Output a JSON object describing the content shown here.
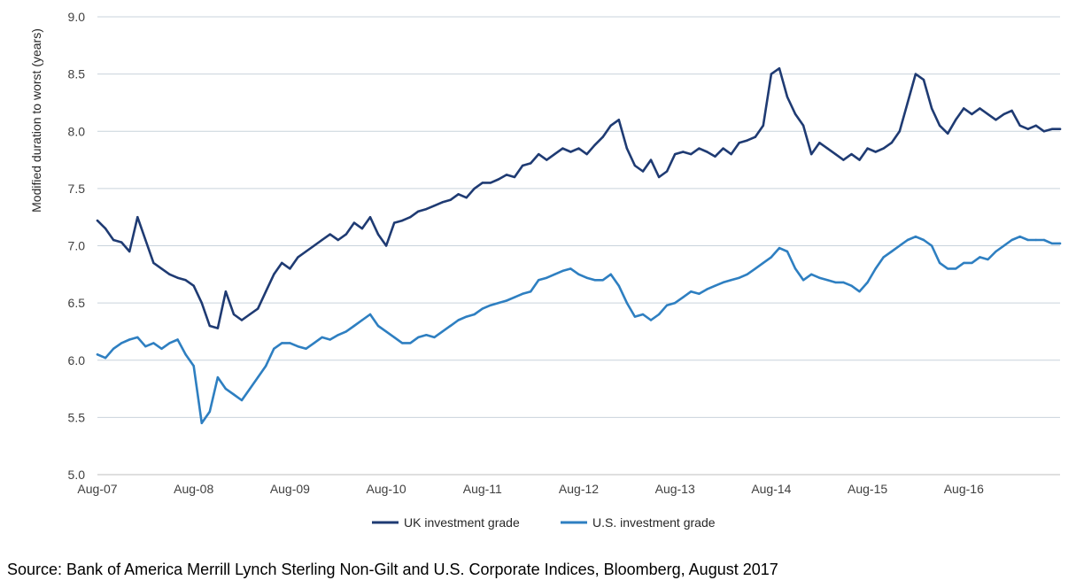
{
  "chart_data": {
    "type": "line",
    "title": "",
    "xlabel": "",
    "ylabel": "Modified duration to worst (years)",
    "ylim": [
      5.0,
      9.0
    ],
    "yticks": [
      "5.0",
      "5.5",
      "6.0",
      "6.5",
      "7.0",
      "7.5",
      "8.0",
      "8.5",
      "9.0"
    ],
    "xlim": [
      "2007-08",
      "2017-08"
    ],
    "xticks": [
      "Aug-07",
      "Aug-08",
      "Aug-09",
      "Aug-10",
      "Aug-11",
      "Aug-12",
      "Aug-13",
      "Aug-14",
      "Aug-15",
      "Aug-16"
    ],
    "grid": "horizontal",
    "legend_position": "bottom",
    "series": [
      {
        "name": "UK investment grade",
        "color": "#1f3b73",
        "x": [
          "2007-08",
          "2007-09",
          "2007-10",
          "2007-11",
          "2007-12",
          "2008-01",
          "2008-02",
          "2008-03",
          "2008-04",
          "2008-05",
          "2008-06",
          "2008-07",
          "2008-08",
          "2008-09",
          "2008-10",
          "2008-11",
          "2008-12",
          "2009-01",
          "2009-02",
          "2009-03",
          "2009-04",
          "2009-05",
          "2009-06",
          "2009-07",
          "2009-08",
          "2009-09",
          "2009-10",
          "2009-11",
          "2009-12",
          "2010-01",
          "2010-02",
          "2010-03",
          "2010-04",
          "2010-05",
          "2010-06",
          "2010-07",
          "2010-08",
          "2010-09",
          "2010-10",
          "2010-11",
          "2010-12",
          "2011-01",
          "2011-02",
          "2011-03",
          "2011-04",
          "2011-05",
          "2011-06",
          "2011-07",
          "2011-08",
          "2011-09",
          "2011-10",
          "2011-11",
          "2011-12",
          "2012-01",
          "2012-02",
          "2012-03",
          "2012-04",
          "2012-05",
          "2012-06",
          "2012-07",
          "2012-08",
          "2012-09",
          "2012-10",
          "2012-11",
          "2012-12",
          "2013-01",
          "2013-02",
          "2013-03",
          "2013-04",
          "2013-05",
          "2013-06",
          "2013-07",
          "2013-08",
          "2013-09",
          "2013-10",
          "2013-11",
          "2013-12",
          "2014-01",
          "2014-02",
          "2014-03",
          "2014-04",
          "2014-05",
          "2014-06",
          "2014-07",
          "2014-08",
          "2014-09",
          "2014-10",
          "2014-11",
          "2014-12",
          "2015-01",
          "2015-02",
          "2015-03",
          "2015-04",
          "2015-05",
          "2015-06",
          "2015-07",
          "2015-08",
          "2015-09",
          "2015-10",
          "2015-11",
          "2015-12",
          "2016-01",
          "2016-02",
          "2016-03",
          "2016-04",
          "2016-05",
          "2016-06",
          "2016-07",
          "2016-08",
          "2016-09",
          "2016-10",
          "2016-11",
          "2016-12",
          "2017-01",
          "2017-02",
          "2017-03",
          "2017-04",
          "2017-05",
          "2017-06",
          "2017-07",
          "2017-08"
        ],
        "values": [
          7.22,
          7.15,
          7.05,
          7.03,
          6.95,
          7.25,
          7.05,
          6.85,
          6.8,
          6.75,
          6.72,
          6.7,
          6.65,
          6.5,
          6.3,
          6.28,
          6.6,
          6.4,
          6.35,
          6.4,
          6.45,
          6.6,
          6.75,
          6.85,
          6.8,
          6.9,
          6.95,
          7.0,
          7.05,
          7.1,
          7.05,
          7.1,
          7.2,
          7.15,
          7.25,
          7.1,
          7.0,
          7.2,
          7.22,
          7.25,
          7.3,
          7.32,
          7.35,
          7.38,
          7.4,
          7.45,
          7.42,
          7.5,
          7.55,
          7.55,
          7.58,
          7.62,
          7.6,
          7.7,
          7.72,
          7.8,
          7.75,
          7.8,
          7.85,
          7.82,
          7.85,
          7.8,
          7.88,
          7.95,
          8.05,
          8.1,
          7.85,
          7.7,
          7.65,
          7.75,
          7.6,
          7.65,
          7.8,
          7.82,
          7.8,
          7.85,
          7.82,
          7.78,
          7.85,
          7.8,
          7.9,
          7.92,
          7.95,
          8.05,
          8.5,
          8.55,
          8.3,
          8.15,
          8.05,
          7.8,
          7.9,
          7.85,
          7.8,
          7.75,
          7.8,
          7.75,
          7.85,
          7.82,
          7.85,
          7.9,
          8.0,
          8.25,
          8.5,
          8.45,
          8.2,
          8.05,
          7.98,
          8.1,
          8.2,
          8.15,
          8.2,
          8.15,
          8.1,
          8.15,
          8.18,
          8.05,
          8.02,
          8.05,
          8.0,
          8.02,
          8.02
        ]
      },
      {
        "name": "U.S. investment grade",
        "color": "#2e7fc1",
        "x": [
          "2007-08",
          "2007-09",
          "2007-10",
          "2007-11",
          "2007-12",
          "2008-01",
          "2008-02",
          "2008-03",
          "2008-04",
          "2008-05",
          "2008-06",
          "2008-07",
          "2008-08",
          "2008-09",
          "2008-10",
          "2008-11",
          "2008-12",
          "2009-01",
          "2009-02",
          "2009-03",
          "2009-04",
          "2009-05",
          "2009-06",
          "2009-07",
          "2009-08",
          "2009-09",
          "2009-10",
          "2009-11",
          "2009-12",
          "2010-01",
          "2010-02",
          "2010-03",
          "2010-04",
          "2010-05",
          "2010-06",
          "2010-07",
          "2010-08",
          "2010-09",
          "2010-10",
          "2010-11",
          "2010-12",
          "2011-01",
          "2011-02",
          "2011-03",
          "2011-04",
          "2011-05",
          "2011-06",
          "2011-07",
          "2011-08",
          "2011-09",
          "2011-10",
          "2011-11",
          "2011-12",
          "2012-01",
          "2012-02",
          "2012-03",
          "2012-04",
          "2012-05",
          "2012-06",
          "2012-07",
          "2012-08",
          "2012-09",
          "2012-10",
          "2012-11",
          "2012-12",
          "2013-01",
          "2013-02",
          "2013-03",
          "2013-04",
          "2013-05",
          "2013-06",
          "2013-07",
          "2013-08",
          "2013-09",
          "2013-10",
          "2013-11",
          "2013-12",
          "2014-01",
          "2014-02",
          "2014-03",
          "2014-04",
          "2014-05",
          "2014-06",
          "2014-07",
          "2014-08",
          "2014-09",
          "2014-10",
          "2014-11",
          "2014-12",
          "2015-01",
          "2015-02",
          "2015-03",
          "2015-04",
          "2015-05",
          "2015-06",
          "2015-07",
          "2015-08",
          "2015-09",
          "2015-10",
          "2015-11",
          "2015-12",
          "2016-01",
          "2016-02",
          "2016-03",
          "2016-04",
          "2016-05",
          "2016-06",
          "2016-07",
          "2016-08",
          "2016-09",
          "2016-10",
          "2016-11",
          "2016-12",
          "2017-01",
          "2017-02",
          "2017-03",
          "2017-04",
          "2017-05",
          "2017-06",
          "2017-07",
          "2017-08"
        ],
        "values": [
          6.05,
          6.02,
          6.1,
          6.15,
          6.18,
          6.2,
          6.12,
          6.15,
          6.1,
          6.15,
          6.18,
          6.05,
          5.95,
          5.45,
          5.55,
          5.85,
          5.75,
          5.7,
          5.65,
          5.75,
          5.85,
          5.95,
          6.1,
          6.15,
          6.15,
          6.12,
          6.1,
          6.15,
          6.2,
          6.18,
          6.22,
          6.25,
          6.3,
          6.35,
          6.4,
          6.3,
          6.25,
          6.2,
          6.15,
          6.15,
          6.2,
          6.22,
          6.2,
          6.25,
          6.3,
          6.35,
          6.38,
          6.4,
          6.45,
          6.48,
          6.5,
          6.52,
          6.55,
          6.58,
          6.6,
          6.7,
          6.72,
          6.75,
          6.78,
          6.8,
          6.75,
          6.72,
          6.7,
          6.7,
          6.75,
          6.65,
          6.5,
          6.38,
          6.4,
          6.35,
          6.4,
          6.48,
          6.5,
          6.55,
          6.6,
          6.58,
          6.62,
          6.65,
          6.68,
          6.7,
          6.72,
          6.75,
          6.8,
          6.85,
          6.9,
          6.98,
          6.95,
          6.8,
          6.7,
          6.75,
          6.72,
          6.7,
          6.68,
          6.68,
          6.65,
          6.6,
          6.68,
          6.8,
          6.9,
          6.95,
          7.0,
          7.05,
          7.08,
          7.05,
          7.0,
          6.85,
          6.8,
          6.8,
          6.85,
          6.85,
          6.9,
          6.88,
          6.95,
          7.0,
          7.05,
          7.08,
          7.05,
          7.05,
          7.05,
          7.02,
          7.02
        ]
      }
    ]
  },
  "source_note": "Source: Bank of America Merrill Lynch Sterling Non-Gilt and U.S. Corporate Indices, Bloomberg, August 2017"
}
